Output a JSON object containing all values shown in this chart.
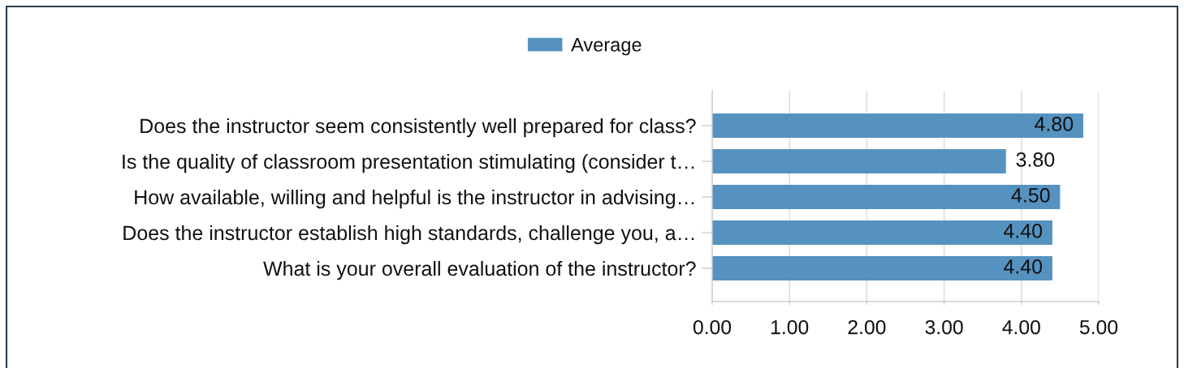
{
  "chart_data": {
    "type": "bar",
    "orientation": "horizontal",
    "legend": "top",
    "grid": "x",
    "categories": [
      "Does the instructor seem consistently well prepared for class?",
      "Is the quality of classroom presentation stimulating (consider t…",
      "How available, willing and helpful is the instructor in advising…",
      "Does the instructor establish high standards, challenge you, a…",
      "What is your overall evaluation of the instructor?"
    ],
    "series": [
      {
        "name": "Average",
        "color": "#5592c0",
        "values": [
          4.8,
          3.8,
          4.5,
          4.4,
          4.4
        ],
        "value_labels": [
          "4.80",
          "3.80",
          "4.50",
          "4.40",
          "4.40"
        ]
      }
    ],
    "xlim": [
      0,
      5
    ],
    "xticks": [
      {
        "value": 0,
        "label": "0.00"
      },
      {
        "value": 1,
        "label": "1.00"
      },
      {
        "value": 2,
        "label": "2.00"
      },
      {
        "value": 3,
        "label": "3.00"
      },
      {
        "value": 4,
        "label": "4.00"
      },
      {
        "value": 5,
        "label": "5.00"
      }
    ]
  }
}
